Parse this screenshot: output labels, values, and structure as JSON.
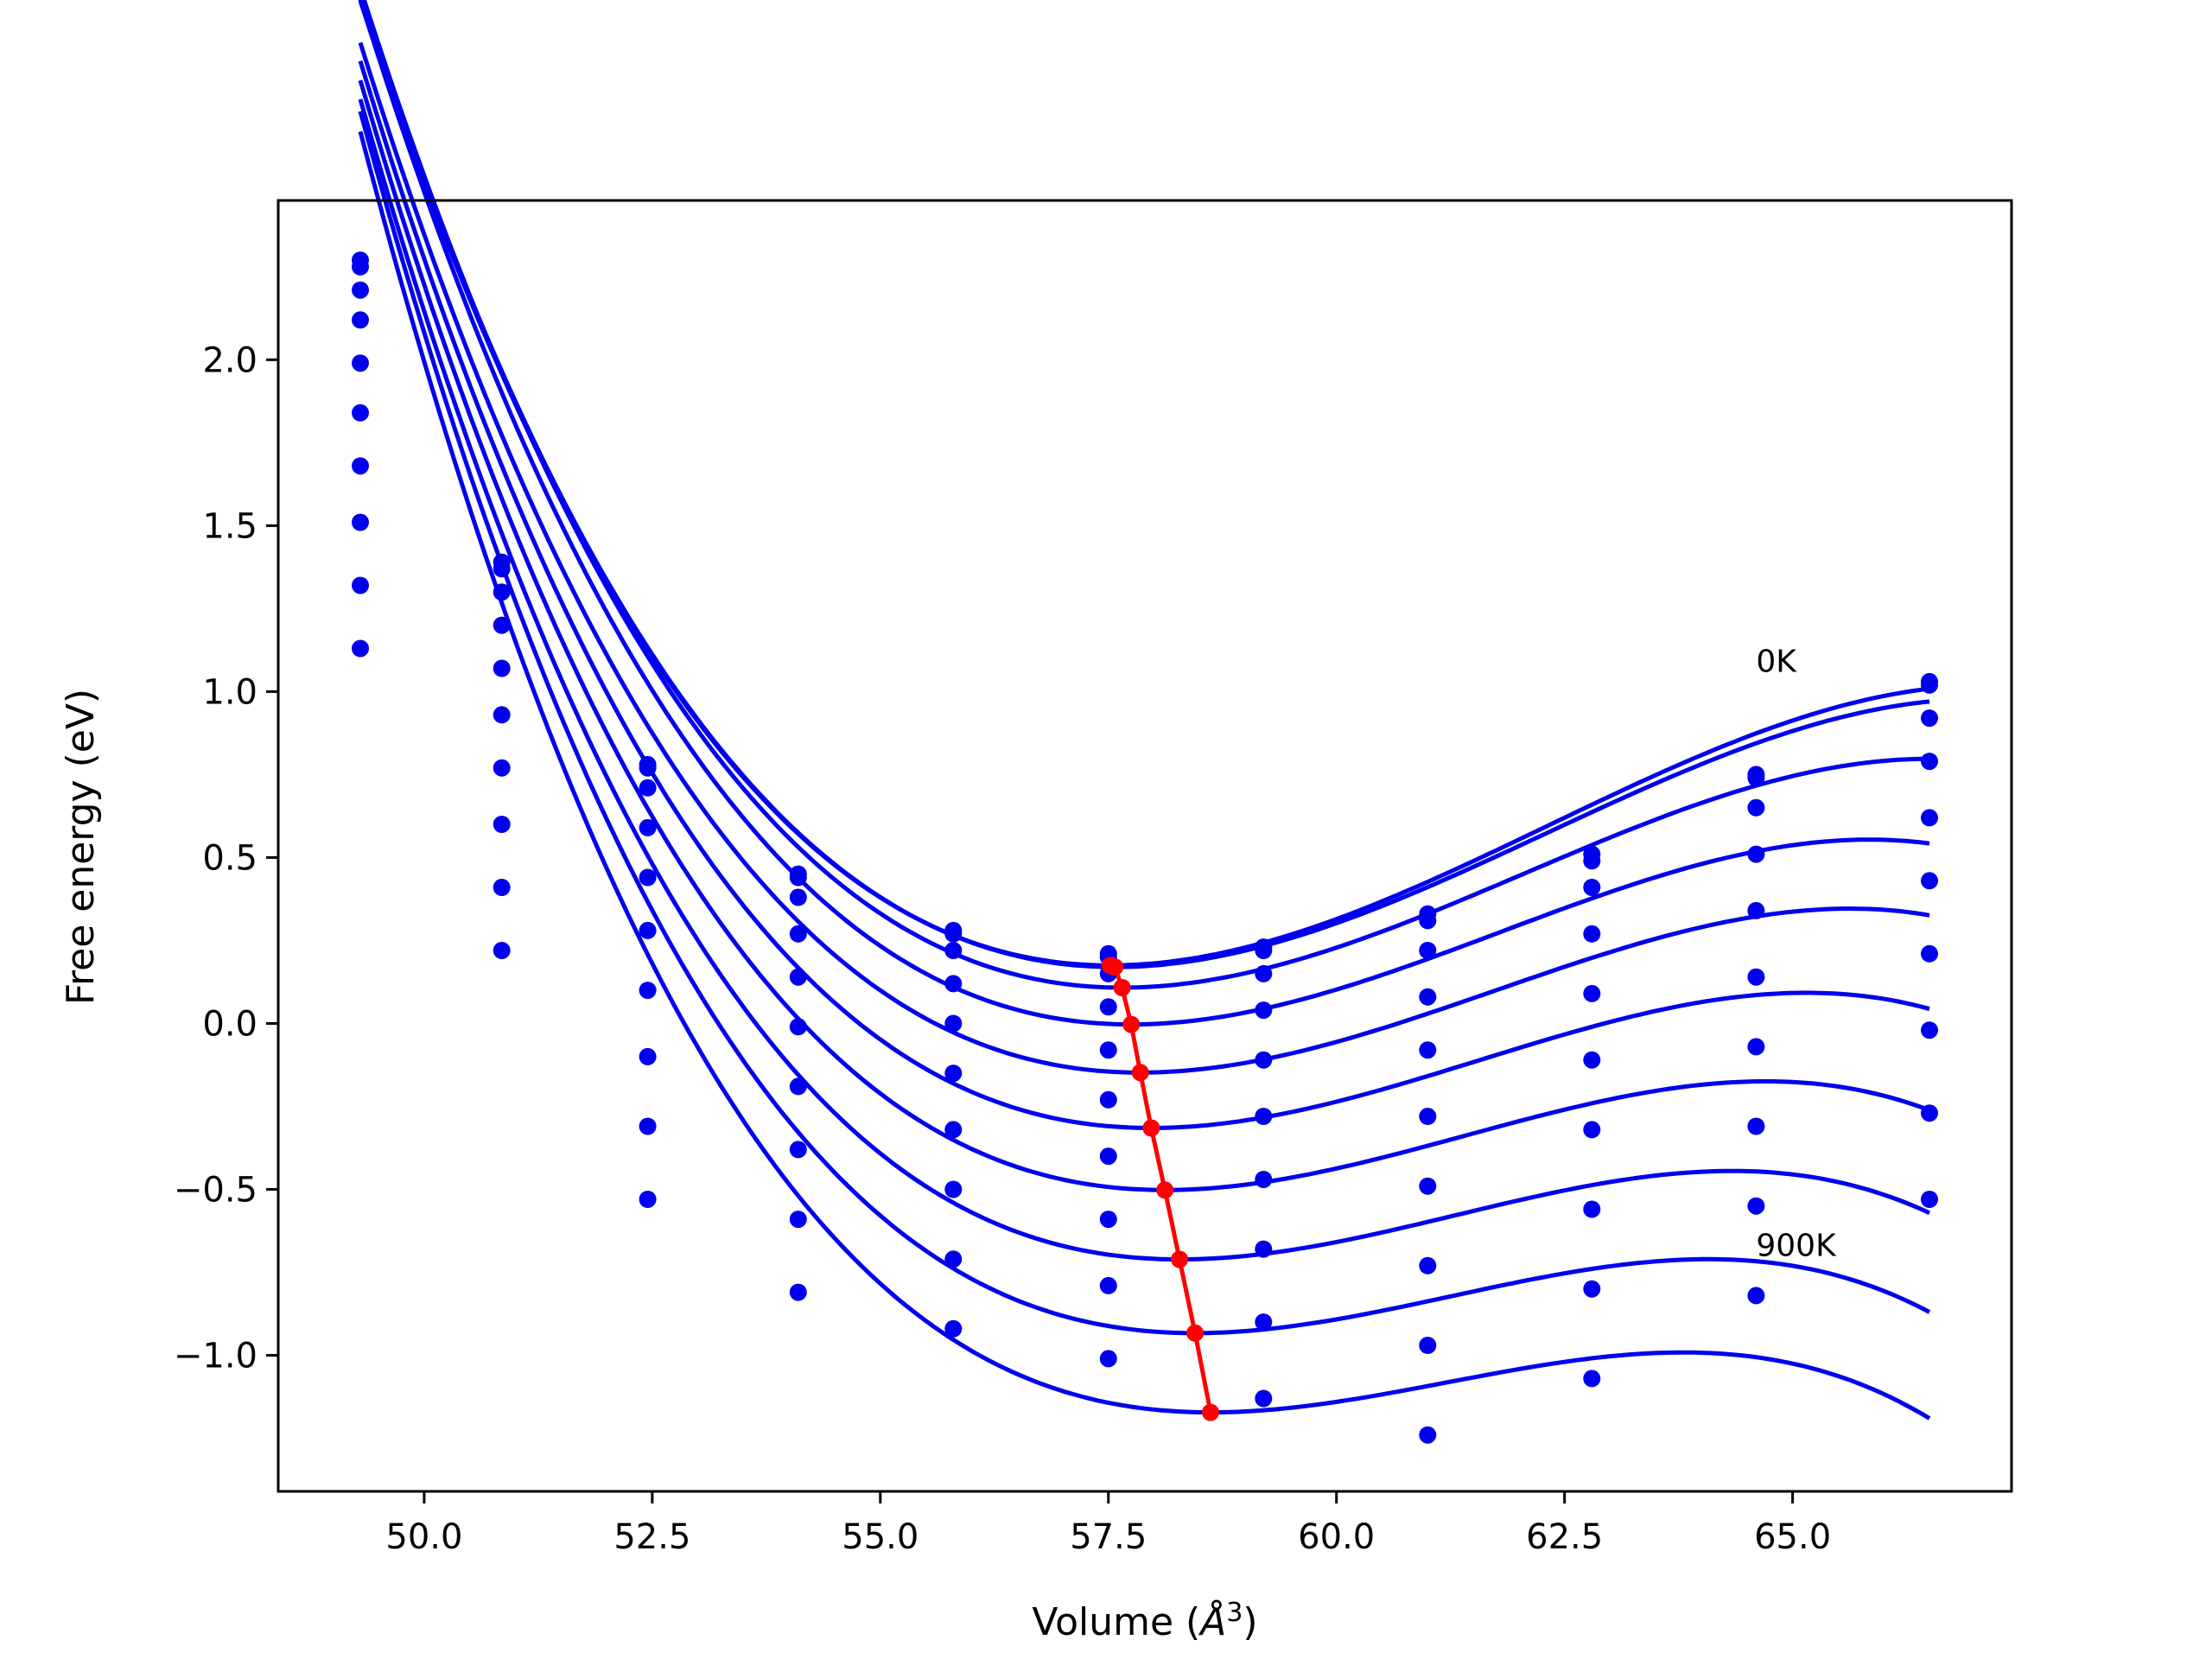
{
  "chart_data": {
    "type": "scatter",
    "title": "",
    "xlabel": "Volume",
    "xlabel_unit_base": "Å",
    "xlabel_unit_exp": "3",
    "ylabel": "Free energy (eV)",
    "xlim": [
      48.4,
      67.4
    ],
    "ylim": [
      -1.41,
      2.48
    ],
    "xticks": [
      50.0,
      52.5,
      55.0,
      57.5,
      60.0,
      62.5,
      65.0
    ],
    "xtick_labels": [
      "50.0",
      "52.5",
      "55.0",
      "57.5",
      "60.0",
      "62.5",
      "65.0"
    ],
    "yticks": [
      -1.0,
      -0.5,
      0.0,
      0.5,
      1.0,
      1.5,
      2.0
    ],
    "ytick_labels": [
      "−1.0",
      "−0.5",
      "0.0",
      "0.5",
      "1.0",
      "1.5",
      "2.0"
    ],
    "grid": false,
    "annotations": [
      {
        "text": "0K",
        "x": 64.6,
        "y": 1.06
      },
      {
        "text": "900K",
        "x": 64.6,
        "y": -0.7
      }
    ],
    "colors": {
      "fits": "#0000ee",
      "points": "#0000ee",
      "minima": "#ff0000"
    },
    "x": [
      49.3,
      50.85,
      52.45,
      54.1,
      55.8,
      57.5,
      59.2,
      61.0,
      62.8,
      64.6,
      66.5
    ],
    "series": [
      {
        "y": [
          2.3,
          1.39,
          0.78,
          0.45,
          0.28,
          0.21,
          0.23,
          0.33,
          0.51,
          0.75,
          1.03
        ]
      },
      {
        "y": [
          2.28,
          1.37,
          0.77,
          0.44,
          0.27,
          0.2,
          0.22,
          0.31,
          0.49,
          0.74,
          1.02
        ]
      },
      {
        "y": [
          2.21,
          1.3,
          0.71,
          0.38,
          0.22,
          0.15,
          0.15,
          0.22,
          0.41,
          0.65,
          0.92
        ]
      },
      {
        "y": [
          2.12,
          1.2,
          0.59,
          0.27,
          0.12,
          0.05,
          0.04,
          0.08,
          0.27,
          0.51,
          0.79
        ]
      },
      {
        "y": [
          1.99,
          1.07,
          0.44,
          0.14,
          0.0,
          -0.08,
          -0.11,
          -0.08,
          0.09,
          0.34,
          0.62
        ]
      },
      {
        "y": [
          1.84,
          0.93,
          0.28,
          -0.01,
          -0.15,
          -0.23,
          -0.28,
          -0.28,
          -0.11,
          0.14,
          0.43
        ]
      },
      {
        "y": [
          1.68,
          0.77,
          0.1,
          -0.19,
          -0.32,
          -0.4,
          -0.47,
          -0.49,
          -0.32,
          -0.07,
          0.21
        ]
      },
      {
        "y": [
          1.51,
          0.6,
          -0.1,
          -0.38,
          -0.5,
          -0.59,
          -0.68,
          -0.73,
          -0.56,
          -0.31,
          -0.02
        ]
      },
      {
        "y": [
          1.32,
          0.41,
          -0.31,
          -0.59,
          -0.71,
          -0.79,
          -0.9,
          -0.97,
          -0.8,
          -0.55,
          -0.27
        ]
      },
      {
        "y": [
          1.13,
          0.22,
          -0.53,
          -0.81,
          -0.92,
          -1.01,
          -1.13,
          -1.24,
          -1.07,
          -0.82,
          -0.53
        ]
      }
    ],
    "fits": [
      {
        "v0": 57.52,
        "emin": 0.175,
        "a": 0.0274,
        "b": 0.0019
      },
      {
        "v0": 57.57,
        "emin": 0.17,
        "a": 0.027,
        "b": 0.0019
      },
      {
        "v0": 57.65,
        "emin": 0.108,
        "a": 0.0265,
        "b": 0.002
      },
      {
        "v0": 57.75,
        "emin": -0.003,
        "a": 0.0255,
        "b": 0.0021
      },
      {
        "v0": 57.85,
        "emin": -0.148,
        "a": 0.0245,
        "b": 0.0021
      },
      {
        "v0": 57.97,
        "emin": -0.315,
        "a": 0.0237,
        "b": 0.0022
      },
      {
        "v0": 58.12,
        "emin": -0.502,
        "a": 0.0227,
        "b": 0.0023
      },
      {
        "v0": 58.28,
        "emin": -0.711,
        "a": 0.0218,
        "b": 0.0024
      },
      {
        "v0": 58.45,
        "emin": -0.933,
        "a": 0.0211,
        "b": 0.0025
      },
      {
        "v0": 58.62,
        "emin": -1.172,
        "a": 0.0202,
        "b": 0.0026
      }
    ],
    "minima_path": {
      "x": [
        57.52,
        57.57,
        57.65,
        57.75,
        57.85,
        57.97,
        58.12,
        58.28,
        58.45,
        58.62
      ],
      "y": [
        0.175,
        0.17,
        0.108,
        -0.003,
        -0.148,
        -0.315,
        -0.502,
        -0.711,
        -0.933,
        -1.172
      ]
    }
  }
}
